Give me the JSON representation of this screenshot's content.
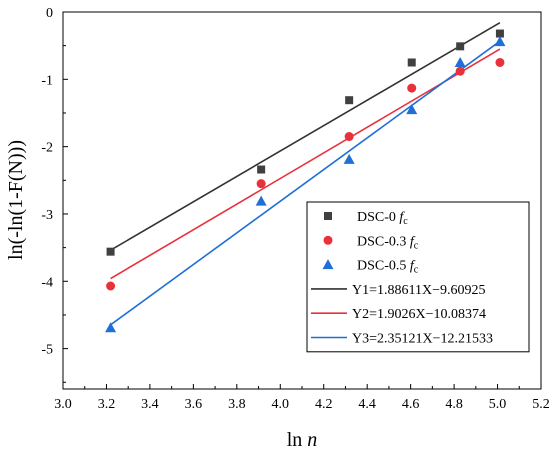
{
  "chart_data": {
    "type": "scatter",
    "xlabel": {
      "prefix": "ln ",
      "var": "n"
    },
    "ylabel": "ln(-ln(1-F(N)))",
    "xlim": [
      3.0,
      5.2
    ],
    "ylim": [
      -5.6,
      0
    ],
    "x_ticks": [
      "3.0",
      "3.2",
      "3.4",
      "3.6",
      "3.8",
      "4.0",
      "4.2",
      "4.4",
      "4.6",
      "4.8",
      "5.0",
      "5.2"
    ],
    "y_ticks": [
      "0",
      "-1",
      "-2",
      "-3",
      "-4",
      "-5"
    ],
    "series": [
      {
        "name_prefix": "DSC-0 ",
        "name_var": "f",
        "name_sub": "c",
        "marker": "square",
        "color": "#404040",
        "x": [
          3.219,
          3.912,
          4.317,
          4.605,
          4.828,
          5.011
        ],
        "y": [
          -3.56,
          -2.34,
          -1.31,
          -0.75,
          -0.51,
          -0.32
        ]
      },
      {
        "name_prefix": "DSC-0.3 ",
        "name_var": "f",
        "name_sub": "c",
        "marker": "circle",
        "color": "#e8313b",
        "x": [
          3.219,
          3.912,
          4.317,
          4.605,
          4.828,
          5.011
        ],
        "y": [
          -4.07,
          -2.55,
          -1.85,
          -1.13,
          -0.88,
          -0.75
        ]
      },
      {
        "name_prefix": "DSC-0.5 ",
        "name_var": "f",
        "name_sub": "c",
        "marker": "triangle",
        "color": "#1f6fd6",
        "x": [
          3.219,
          3.912,
          4.317,
          4.605,
          4.828,
          5.011
        ],
        "y": [
          -4.69,
          -2.81,
          -2.19,
          -1.45,
          -0.75,
          -0.44
        ]
      }
    ],
    "fits": [
      {
        "label": "Y1=1.88611X−9.60925",
        "slope": 1.88611,
        "intercept": -9.60925,
        "color": "#333333",
        "x_range": [
          3.219,
          5.011
        ]
      },
      {
        "label": "Y2=1.9026X−10.08374",
        "slope": 1.9026,
        "intercept": -10.08374,
        "color": "#e8313b",
        "x_range": [
          3.219,
          5.011
        ]
      },
      {
        "label": "Y3=2.35121X−12.21533",
        "slope": 2.35121,
        "intercept": -12.21533,
        "color": "#1f6fd6",
        "x_range": [
          3.219,
          5.011
        ]
      }
    ],
    "legend_position": "bottom-right",
    "grid": false
  }
}
